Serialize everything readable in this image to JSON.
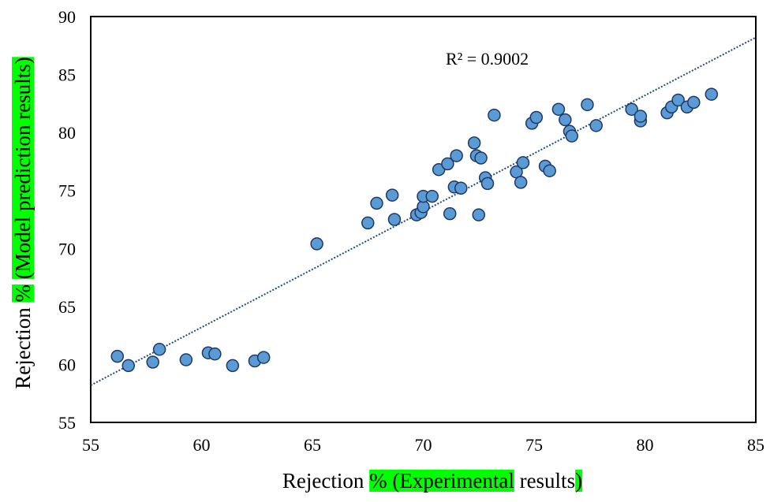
{
  "chart_data": {
    "type": "scatter",
    "xlabel": {
      "parts": [
        {
          "text": "Rejection ",
          "highlight": false
        },
        {
          "text": "% (Experimental",
          "highlight": true
        },
        {
          "text": " results",
          "highlight": false
        },
        {
          "text": ")",
          "highlight": true
        }
      ]
    },
    "ylabel": {
      "parts": [
        {
          "text": "Rejection ",
          "highlight": false
        },
        {
          "text": "%",
          "highlight": true
        },
        {
          "text": " ",
          "highlight": false
        },
        {
          "text": "(Model prediction results)",
          "highlight": true
        }
      ]
    },
    "xlim": [
      55,
      85
    ],
    "ylim": [
      55,
      90
    ],
    "xticks": [
      55,
      60,
      65,
      70,
      75,
      80,
      85
    ],
    "yticks": [
      55,
      60,
      65,
      70,
      75,
      80,
      85,
      90
    ],
    "grid": false,
    "annotation": "R² = 0.9002",
    "trendline": {
      "type": "linear",
      "x": [
        55,
        85
      ],
      "y": [
        58.2,
        88.2
      ],
      "style": "dotted",
      "color": "#1f4e79"
    },
    "marker": {
      "fill": "#5b9bd5",
      "edge": "#1f3864"
    },
    "points": [
      [
        56.2,
        60.7
      ],
      [
        56.7,
        59.9
      ],
      [
        57.8,
        60.2
      ],
      [
        58.1,
        61.3
      ],
      [
        59.3,
        60.4
      ],
      [
        60.3,
        61.0
      ],
      [
        60.6,
        60.9
      ],
      [
        61.4,
        59.9
      ],
      [
        62.4,
        60.3
      ],
      [
        62.8,
        60.6
      ],
      [
        65.2,
        70.4
      ],
      [
        67.5,
        72.2
      ],
      [
        67.9,
        73.9
      ],
      [
        68.6,
        74.6
      ],
      [
        68.7,
        72.5
      ],
      [
        69.7,
        72.9
      ],
      [
        69.9,
        73.1
      ],
      [
        70.0,
        73.6
      ],
      [
        70.0,
        74.5
      ],
      [
        70.4,
        74.5
      ],
      [
        70.7,
        76.8
      ],
      [
        71.1,
        77.3
      ],
      [
        71.2,
        73.0
      ],
      [
        71.4,
        75.3
      ],
      [
        71.5,
        78.0
      ],
      [
        71.7,
        75.2
      ],
      [
        72.3,
        79.1
      ],
      [
        72.4,
        78.0
      ],
      [
        72.5,
        72.9
      ],
      [
        72.6,
        77.8
      ],
      [
        72.8,
        76.1
      ],
      [
        72.9,
        75.6
      ],
      [
        73.2,
        81.5
      ],
      [
        74.2,
        76.6
      ],
      [
        74.4,
        75.7
      ],
      [
        74.5,
        77.4
      ],
      [
        74.9,
        80.8
      ],
      [
        75.1,
        81.3
      ],
      [
        75.5,
        77.1
      ],
      [
        75.7,
        76.7
      ],
      [
        76.1,
        82.0
      ],
      [
        76.4,
        81.1
      ],
      [
        76.6,
        80.1
      ],
      [
        76.7,
        79.7
      ],
      [
        77.4,
        82.4
      ],
      [
        77.8,
        80.6
      ],
      [
        79.4,
        82.0
      ],
      [
        79.8,
        81.0
      ],
      [
        79.8,
        81.4
      ],
      [
        81.0,
        81.7
      ],
      [
        81.2,
        82.2
      ],
      [
        81.5,
        82.8
      ],
      [
        81.9,
        82.2
      ],
      [
        82.2,
        82.6
      ],
      [
        83.0,
        83.3
      ]
    ]
  }
}
